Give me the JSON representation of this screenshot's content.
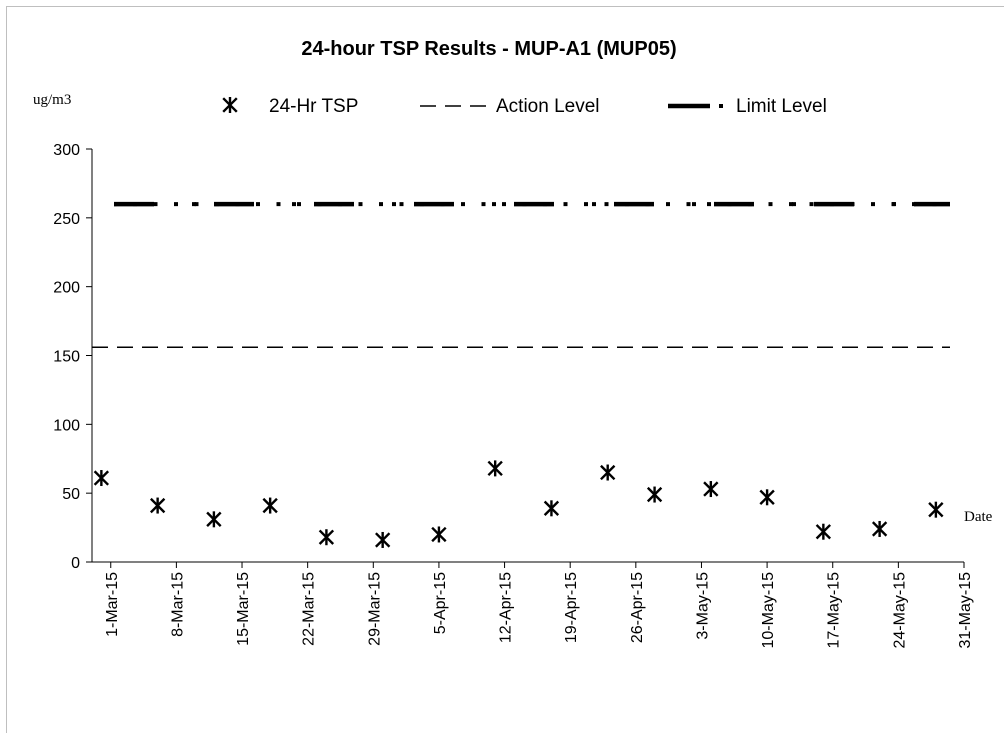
{
  "chart_data": {
    "type": "scatter",
    "title": "24-hour TSP Results - MUP-A1 (MUP05)",
    "ylabel": "ug/m3",
    "xlabel": "Date",
    "ylim": [
      0,
      300
    ],
    "yticks": [
      0,
      50,
      100,
      150,
      200,
      250,
      300
    ],
    "xlim": [
      "2015-02-27",
      "2015-05-31"
    ],
    "xtick_labels": [
      "1-Mar-15",
      "8-Mar-15",
      "15-Mar-15",
      "22-Mar-15",
      "29-Mar-15",
      "5-Apr-15",
      "12-Apr-15",
      "19-Apr-15",
      "26-Apr-15",
      "3-May-15",
      "10-May-15",
      "17-May-15",
      "24-May-15",
      "31-May-15"
    ],
    "xtick_dates": [
      "2015-03-01",
      "2015-03-08",
      "2015-03-15",
      "2015-03-22",
      "2015-03-29",
      "2015-04-05",
      "2015-04-12",
      "2015-04-19",
      "2015-04-26",
      "2015-05-03",
      "2015-05-10",
      "2015-05-17",
      "2015-05-24",
      "2015-05-31"
    ],
    "series": [
      {
        "name": "24-Hr TSP",
        "marker": "asterisk",
        "color": "#000000",
        "points": [
          {
            "x": "2015-02-28",
            "y": 61
          },
          {
            "x": "2015-03-06",
            "y": 41
          },
          {
            "x": "2015-03-12",
            "y": 31
          },
          {
            "x": "2015-03-18",
            "y": 41
          },
          {
            "x": "2015-03-24",
            "y": 18
          },
          {
            "x": "2015-03-30",
            "y": 16
          },
          {
            "x": "2015-04-05",
            "y": 20
          },
          {
            "x": "2015-04-11",
            "y": 68
          },
          {
            "x": "2015-04-17",
            "y": 39
          },
          {
            "x": "2015-04-23",
            "y": 65
          },
          {
            "x": "2015-04-28",
            "y": 49
          },
          {
            "x": "2015-05-04",
            "y": 53
          },
          {
            "x": "2015-05-10",
            "y": 47
          },
          {
            "x": "2015-05-16",
            "y": 22
          },
          {
            "x": "2015-05-22",
            "y": 24
          },
          {
            "x": "2015-05-28",
            "y": 38
          }
        ]
      },
      {
        "name": "Action Level",
        "style": "dashed",
        "color": "#000000",
        "y": 156
      },
      {
        "name": "Limit Level",
        "style": "dash-dot-dot",
        "color": "#000000",
        "y": 260
      }
    ],
    "legend_position": "top"
  }
}
